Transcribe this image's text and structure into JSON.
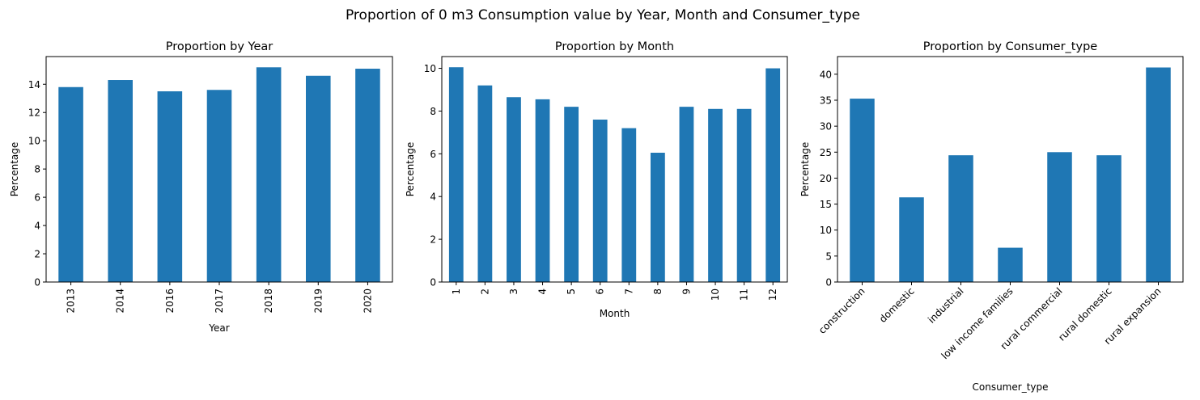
{
  "figure": {
    "suptitle": "Proportion of 0 m3 Consumption value by Year, Month and Consumer_type",
    "bar_color": "#1f77b4"
  },
  "chart_data": [
    {
      "type": "bar",
      "title": "Proportion by Year",
      "xlabel": "Year",
      "ylabel": "Percentage",
      "categories": [
        "2013",
        "2014",
        "2016",
        "2017",
        "2018",
        "2019",
        "2020"
      ],
      "values": [
        13.8,
        14.3,
        13.5,
        13.6,
        15.2,
        14.6,
        15.1
      ],
      "ylim": [
        0,
        15.96
      ],
      "yticks": [
        0,
        2,
        4,
        6,
        8,
        10,
        12,
        14
      ],
      "xtick_rotation": 90
    },
    {
      "type": "bar",
      "title": "Proportion by Month",
      "xlabel": "Month",
      "ylabel": "Percentage",
      "categories": [
        "1",
        "2",
        "3",
        "4",
        "5",
        "6",
        "7",
        "8",
        "9",
        "10",
        "11",
        "12"
      ],
      "values": [
        10.05,
        9.2,
        8.65,
        8.55,
        8.2,
        7.6,
        7.2,
        6.05,
        8.2,
        8.1,
        8.1,
        10.0
      ],
      "ylim": [
        0,
        10.55
      ],
      "yticks": [
        0,
        2,
        4,
        6,
        8,
        10
      ],
      "xtick_rotation": 90
    },
    {
      "type": "bar",
      "title": "Proportion by Consumer_type",
      "xlabel": "Consumer_type",
      "ylabel": "Percentage",
      "categories": [
        "construction",
        "domestic",
        "industrial",
        "low income families",
        "rural commercial",
        "rural domestic",
        "rural expansion"
      ],
      "values": [
        35.3,
        16.3,
        24.4,
        6.6,
        25.0,
        24.4,
        41.3
      ],
      "ylim": [
        0,
        43.4
      ],
      "yticks": [
        0,
        5,
        10,
        15,
        20,
        25,
        30,
        35,
        40
      ],
      "xtick_rotation": 45
    }
  ]
}
